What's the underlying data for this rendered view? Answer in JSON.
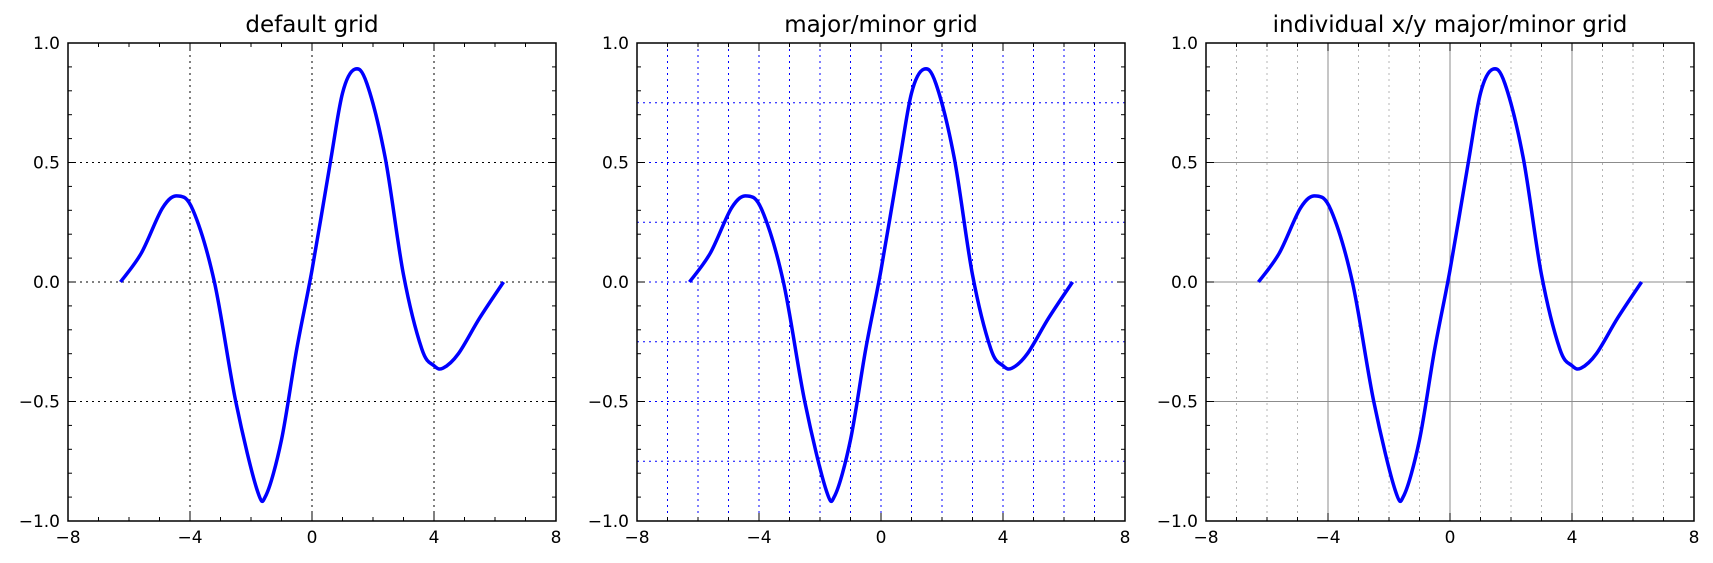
{
  "chart_data": [
    {
      "type": "line",
      "title": "default grid",
      "xlabel": "",
      "ylabel": "",
      "xlim": [
        -8,
        8
      ],
      "ylim": [
        -1.0,
        1.0
      ],
      "xticks": [
        -8,
        -4,
        0,
        4,
        8
      ],
      "xtick_labels": [
        "−8",
        "−4",
        "0",
        "4",
        "8"
      ],
      "yticks": [
        -1.0,
        -0.5,
        0.0,
        0.5,
        1.0
      ],
      "ytick_labels": [
        "−1.0",
        "−0.5",
        "0.0",
        "0.5",
        "1.0"
      ],
      "grid": "major, dotted black on both axes",
      "series": [
        {
          "color": "#0000ff",
          "x": [
            -6.28,
            -5.6,
            -4.9,
            -4.4,
            -3.9,
            -3.2,
            -2.5,
            -1.8,
            -1.5,
            -1.0,
            -0.5,
            0.0,
            0.6,
            1.0,
            1.4,
            1.8,
            2.4,
            3.0,
            3.6,
            4.0,
            4.3,
            4.8,
            5.5,
            6.28
          ],
          "y": [
            0.0,
            0.12,
            0.31,
            0.36,
            0.3,
            0.0,
            -0.5,
            -0.87,
            -0.89,
            -0.66,
            -0.28,
            0.05,
            0.5,
            0.79,
            0.89,
            0.83,
            0.52,
            0.03,
            -0.28,
            -0.35,
            -0.36,
            -0.3,
            -0.15,
            0.0
          ]
        }
      ]
    },
    {
      "type": "line",
      "title": "major/minor grid",
      "xlabel": "",
      "ylabel": "",
      "xlim": [
        -8,
        8
      ],
      "ylim": [
        -1.0,
        1.0
      ],
      "xticks": [
        -8,
        -4,
        0,
        4,
        8
      ],
      "xtick_labels": [
        "−8",
        "−4",
        "0",
        "4",
        "8"
      ],
      "yticks": [
        -1.0,
        -0.5,
        0.0,
        0.5,
        1.0
      ],
      "ytick_labels": [
        "−1.0",
        "−0.5",
        "0.0",
        "0.5",
        "1.0"
      ],
      "grid": "major and minor, dotted blue on both axes",
      "series": [
        {
          "color": "#0000ff",
          "x": [
            -6.28,
            -5.6,
            -4.9,
            -4.4,
            -3.9,
            -3.2,
            -2.5,
            -1.8,
            -1.5,
            -1.0,
            -0.5,
            0.0,
            0.6,
            1.0,
            1.4,
            1.8,
            2.4,
            3.0,
            3.6,
            4.0,
            4.3,
            4.8,
            5.5,
            6.28
          ],
          "y": [
            0.0,
            0.12,
            0.31,
            0.36,
            0.3,
            0.0,
            -0.5,
            -0.87,
            -0.89,
            -0.66,
            -0.28,
            0.05,
            0.5,
            0.79,
            0.89,
            0.83,
            0.52,
            0.03,
            -0.28,
            -0.35,
            -0.36,
            -0.3,
            -0.15,
            0.0
          ]
        }
      ]
    },
    {
      "type": "line",
      "title": "individual x/y major/minor grid",
      "xlabel": "",
      "ylabel": "",
      "xlim": [
        -8,
        8
      ],
      "ylim": [
        -1.0,
        1.0
      ],
      "xticks": [
        -8,
        -4,
        0,
        4,
        8
      ],
      "xtick_labels": [
        "−8",
        "−4",
        "0",
        "4",
        "8"
      ],
      "yticks": [
        -1.0,
        -0.5,
        0.0,
        0.5,
        1.0
      ],
      "ytick_labels": [
        "−1.0",
        "−0.5",
        "0.0",
        "0.5",
        "1.0"
      ],
      "grid": "x major solid gray + x minor dotted gray, y major solid gray",
      "series": [
        {
          "color": "#0000ff",
          "x": [
            -6.28,
            -5.6,
            -4.9,
            -4.4,
            -3.9,
            -3.2,
            -2.5,
            -1.8,
            -1.5,
            -1.0,
            -0.5,
            0.0,
            0.6,
            1.0,
            1.4,
            1.8,
            2.4,
            3.0,
            3.6,
            4.0,
            4.3,
            4.8,
            5.5,
            6.28
          ],
          "y": [
            0.0,
            0.12,
            0.31,
            0.36,
            0.3,
            0.0,
            -0.5,
            -0.87,
            -0.89,
            -0.66,
            -0.28,
            0.05,
            0.5,
            0.79,
            0.89,
            0.83,
            0.52,
            0.03,
            -0.28,
            -0.35,
            -0.36,
            -0.3,
            -0.15,
            0.0
          ]
        }
      ]
    }
  ]
}
